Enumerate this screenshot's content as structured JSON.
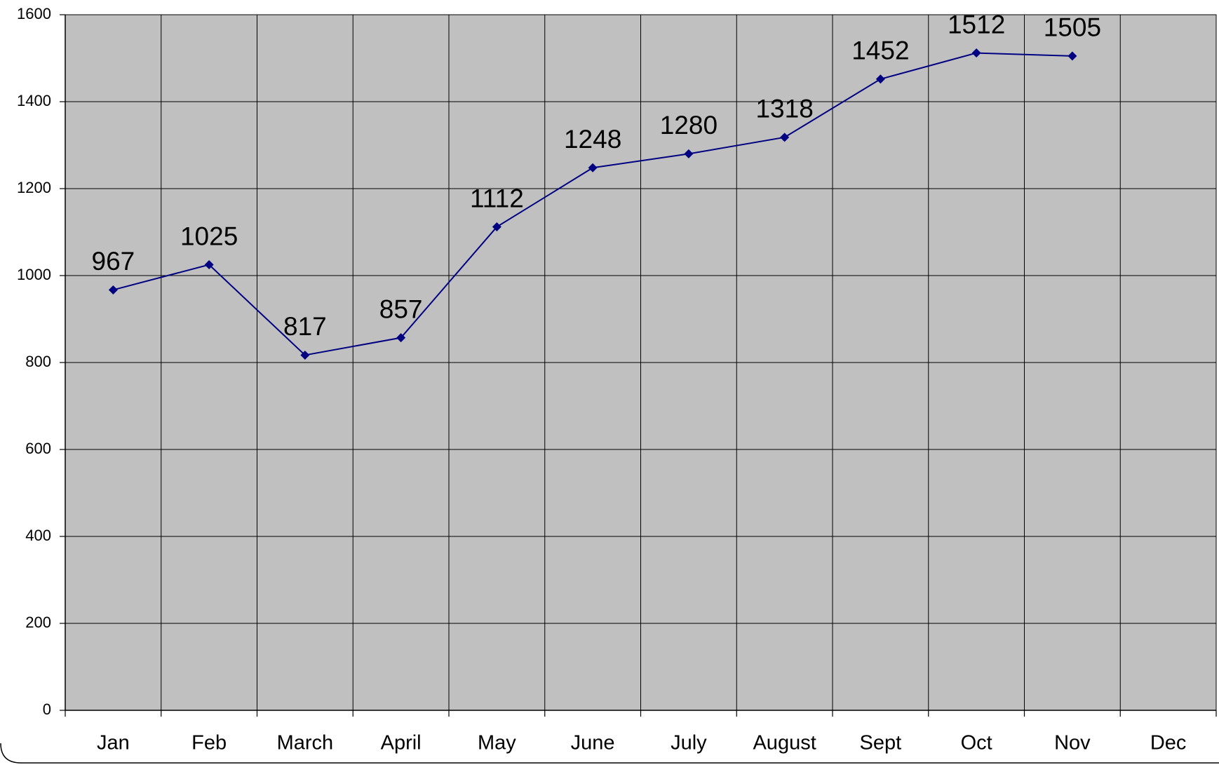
{
  "chart_data": {
    "type": "line",
    "categories": [
      "Jan",
      "Feb",
      "March",
      "April",
      "May",
      "June",
      "July",
      "August",
      "Sept",
      "Oct",
      "Nov",
      "Dec"
    ],
    "values": [
      967,
      1025,
      817,
      857,
      1112,
      1248,
      1280,
      1318,
      1452,
      1512,
      1505,
      null
    ],
    "color": "#000080",
    "ylim": [
      0,
      1600
    ],
    "yticks": [
      0,
      200,
      400,
      600,
      800,
      1000,
      1200,
      1400,
      1600
    ],
    "grid": true,
    "background": "#c0c0c0"
  }
}
